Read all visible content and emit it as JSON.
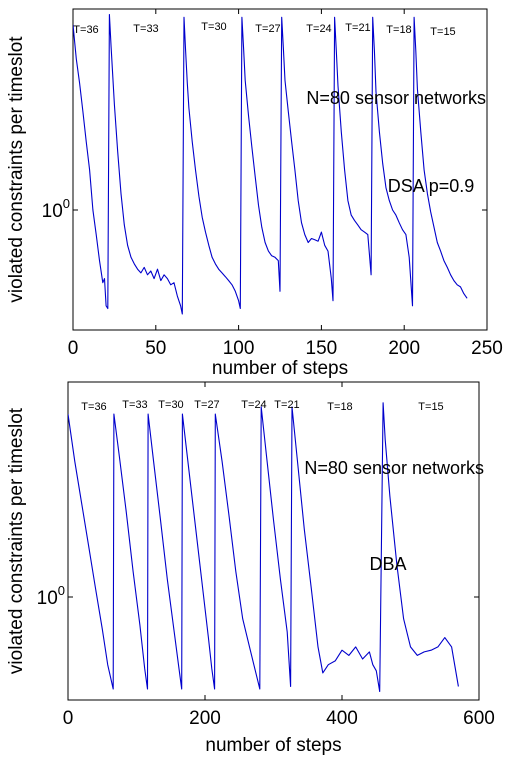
{
  "chart_data": [
    {
      "type": "line",
      "xlabel": "number of steps",
      "ylabel": "violated constraints per timeslot",
      "xlim": [
        0,
        250
      ],
      "xticks": [
        0,
        50,
        100,
        150,
        200,
        250
      ],
      "yscale": "log",
      "ytick_label": "10",
      "ytick_exp": "0",
      "line_color": "#0000cc",
      "annotations": [
        "N=80 sensor networks",
        "DSA p=0.9"
      ],
      "phase_labels": [
        "T=36",
        "T=33",
        "T=30",
        "T=27",
        "T=24",
        "T=21",
        "T=18",
        "T=15"
      ],
      "series": [
        {
          "x": [
            0,
            2,
            4,
            6,
            8,
            10,
            12,
            14,
            16,
            18,
            19,
            20,
            21,
            22,
            23,
            25,
            27,
            29,
            31,
            33,
            35,
            37,
            39,
            41,
            43,
            45,
            47,
            49,
            51,
            53,
            55,
            57,
            59,
            61,
            63,
            65,
            66,
            67,
            68,
            69,
            70,
            72,
            74,
            76,
            78,
            80,
            82,
            84,
            86,
            88,
            90,
            92,
            94,
            96,
            98,
            100,
            101,
            102,
            103,
            104,
            106,
            108,
            110,
            112,
            114,
            116,
            118,
            120,
            122,
            124,
            125,
            126,
            127,
            128,
            130,
            132,
            134,
            136,
            138,
            140,
            142,
            144,
            146,
            148,
            150,
            152,
            154,
            156,
            157,
            158,
            159,
            160,
            162,
            164,
            166,
            168,
            170,
            172,
            174,
            176,
            178,
            180,
            181,
            182,
            183,
            185,
            187,
            189,
            191,
            193,
            195,
            197,
            199,
            201,
            203,
            205,
            206,
            207,
            208,
            210,
            212,
            214,
            216,
            218,
            220,
            222,
            224,
            226,
            228,
            230,
            232,
            234,
            236,
            238
          ],
          "y": [
            6.5,
            4.6,
            3.6,
            2.7,
            2.0,
            1.5,
            1.0,
            0.78,
            0.6,
            0.48,
            0.5,
            0.38,
            0.37,
            7.2,
            5.2,
            2.9,
            1.8,
            1.18,
            0.86,
            0.7,
            0.62,
            0.58,
            0.55,
            0.53,
            0.56,
            0.52,
            0.54,
            0.5,
            0.55,
            0.49,
            0.52,
            0.5,
            0.47,
            0.48,
            0.42,
            0.38,
            0.35,
            7.0,
            5.0,
            3.6,
            2.8,
            2.0,
            1.5,
            1.15,
            0.93,
            0.8,
            0.7,
            0.62,
            0.58,
            0.55,
            0.53,
            0.51,
            0.49,
            0.47,
            0.44,
            0.4,
            0.37,
            7.0,
            5.1,
            3.7,
            2.6,
            1.9,
            1.4,
            1.05,
            0.84,
            0.72,
            0.66,
            0.63,
            0.62,
            0.6,
            0.44,
            7.0,
            5.2,
            3.7,
            2.7,
            2.0,
            1.5,
            1.1,
            0.88,
            0.78,
            0.72,
            0.75,
            0.74,
            0.73,
            0.8,
            0.7,
            0.66,
            0.5,
            0.4,
            7.0,
            5.0,
            3.5,
            2.2,
            1.5,
            1.1,
            0.95,
            0.9,
            0.86,
            0.82,
            0.8,
            0.78,
            0.52,
            7.0,
            5.0,
            3.3,
            2.2,
            1.6,
            1.25,
            1.1,
            1.0,
            0.95,
            0.88,
            0.82,
            0.78,
            0.62,
            0.38,
            7.0,
            5.0,
            3.4,
            2.2,
            1.5,
            1.18,
            0.98,
            0.84,
            0.72,
            0.66,
            0.6,
            0.56,
            0.52,
            0.49,
            0.47,
            0.46,
            0.43,
            0.41
          ]
        }
      ]
    },
    {
      "type": "line",
      "xlabel": "number of steps",
      "ylabel": "violated constraints per timeslot",
      "xlim": [
        0,
        600
      ],
      "xticks": [
        0,
        200,
        400,
        600
      ],
      "yscale": "log",
      "ytick_label": "10",
      "ytick_exp": "0",
      "line_color": "#0000cc",
      "annotations": [
        "N=80 sensor networks",
        "DBA"
      ],
      "phase_labels": [
        "T=36",
        "T=33",
        "T=30",
        "T=27",
        "T=24",
        "T=21",
        "T=18",
        "T=15"
      ],
      "series": [
        {
          "x": [
            0,
            10,
            20,
            30,
            40,
            50,
            58,
            66,
            67,
            75,
            85,
            95,
            105,
            112,
            116,
            117,
            125,
            135,
            145,
            155,
            162,
            166,
            167,
            175,
            185,
            195,
            205,
            210,
            214,
            215,
            225,
            235,
            245,
            255,
            265,
            280,
            282,
            290,
            300,
            310,
            320,
            325,
            327,
            335,
            345,
            355,
            365,
            372,
            380,
            390,
            400,
            410,
            420,
            430,
            440,
            445,
            450,
            455,
            460,
            463,
            470,
            480,
            490,
            500,
            510,
            520,
            530,
            540,
            550,
            560,
            570
          ],
          "y": [
            6.5,
            4.0,
            2.6,
            1.7,
            1.1,
            0.72,
            0.5,
            0.39,
            6.5,
            4.2,
            2.4,
            1.3,
            0.75,
            0.48,
            0.39,
            6.5,
            4.0,
            2.2,
            1.2,
            0.7,
            0.48,
            0.39,
            6.5,
            4.0,
            2.2,
            1.2,
            0.66,
            0.48,
            0.39,
            6.5,
            4.0,
            2.3,
            1.3,
            0.8,
            0.6,
            0.39,
            7.0,
            4.2,
            2.2,
            1.2,
            0.7,
            0.4,
            7.0,
            4.0,
            2.0,
            1.1,
            0.6,
            0.46,
            0.5,
            0.52,
            0.58,
            0.55,
            0.6,
            0.53,
            0.57,
            0.5,
            0.47,
            0.38,
            7.3,
            5.0,
            2.8,
            1.4,
            0.8,
            0.6,
            0.55,
            0.57,
            0.58,
            0.6,
            0.66,
            0.6,
            0.4
          ]
        }
      ]
    }
  ]
}
